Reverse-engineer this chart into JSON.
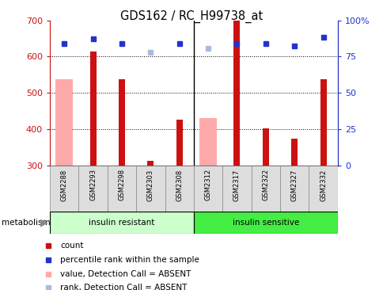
{
  "title": "GDS162 / RC_H99738_at",
  "samples": [
    "GSM2288",
    "GSM2293",
    "GSM2298",
    "GSM2303",
    "GSM2308",
    "GSM2312",
    "GSM2317",
    "GSM2322",
    "GSM2327",
    "GSM2332"
  ],
  "count_values": [
    null,
    615,
    538,
    312,
    425,
    null,
    700,
    402,
    373,
    538
  ],
  "pink_values": [
    538,
    null,
    null,
    null,
    null,
    430,
    null,
    null,
    null,
    null
  ],
  "blue_squares": [
    635,
    648,
    636,
    null,
    636,
    null,
    636,
    636,
    630,
    653
  ],
  "light_blue_squares": [
    null,
    null,
    null,
    612,
    null,
    623,
    null,
    null,
    null,
    null
  ],
  "ylim": [
    300,
    700
  ],
  "yticks": [
    300,
    400,
    500,
    600,
    700
  ],
  "y2ticks": [
    0,
    25,
    50,
    75,
    100
  ],
  "y2ticklabels": [
    "0",
    "25",
    "50",
    "75",
    "100%"
  ],
  "bar_color": "#cc1111",
  "pink_color": "#ffaaaa",
  "blue_color": "#2233cc",
  "light_blue_color": "#aabbdd",
  "group1_label": "insulin resistant",
  "group2_label": "insulin sensitive",
  "group1_color": "#ccffcc",
  "group2_color": "#44ee44",
  "axis_left_color": "#cc1111",
  "axis_right_color": "#2233cc",
  "legend_labels": [
    "count",
    "percentile rank within the sample",
    "value, Detection Call = ABSENT",
    "rank, Detection Call = ABSENT"
  ]
}
